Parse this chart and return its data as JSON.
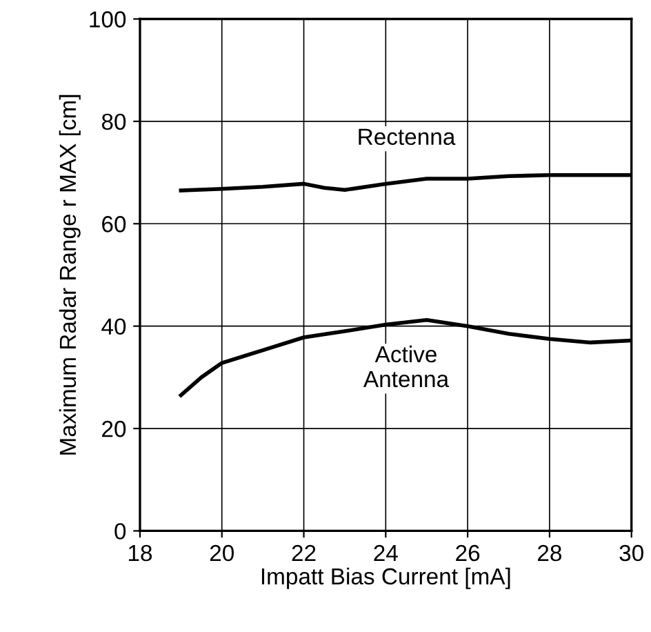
{
  "chart_data": {
    "type": "line",
    "xlabel": "Impatt Bias Current [mA]",
    "ylabel": "Maximum Radar Range r MAX [cm]",
    "xlim": [
      18,
      30
    ],
    "xticks": [
      18,
      20,
      22,
      24,
      26,
      28,
      30
    ],
    "ylim": [
      0,
      100
    ],
    "yticks": [
      0,
      20,
      40,
      60,
      80,
      100
    ],
    "grid": true,
    "marker": "none",
    "line_style": "solid",
    "series": [
      {
        "name": "Rectenna",
        "color": "#000000",
        "x": [
          19,
          20,
          21,
          22,
          22.5,
          23,
          24,
          25,
          26,
          27,
          28,
          29,
          30
        ],
        "values": [
          66.5,
          66.8,
          67.2,
          67.8,
          67.0,
          66.6,
          67.8,
          68.8,
          68.8,
          69.3,
          69.5,
          69.5,
          69.5
        ]
      },
      {
        "name": "Active Antenna",
        "color": "#000000",
        "x": [
          19,
          19.5,
          20,
          21,
          22,
          23,
          24,
          25,
          26,
          27,
          28,
          29,
          30
        ],
        "values": [
          26.5,
          30,
          32.8,
          35.3,
          37.8,
          39,
          40.3,
          41.2,
          40,
          38.5,
          37.5,
          36.8,
          37.2
        ]
      }
    ]
  }
}
